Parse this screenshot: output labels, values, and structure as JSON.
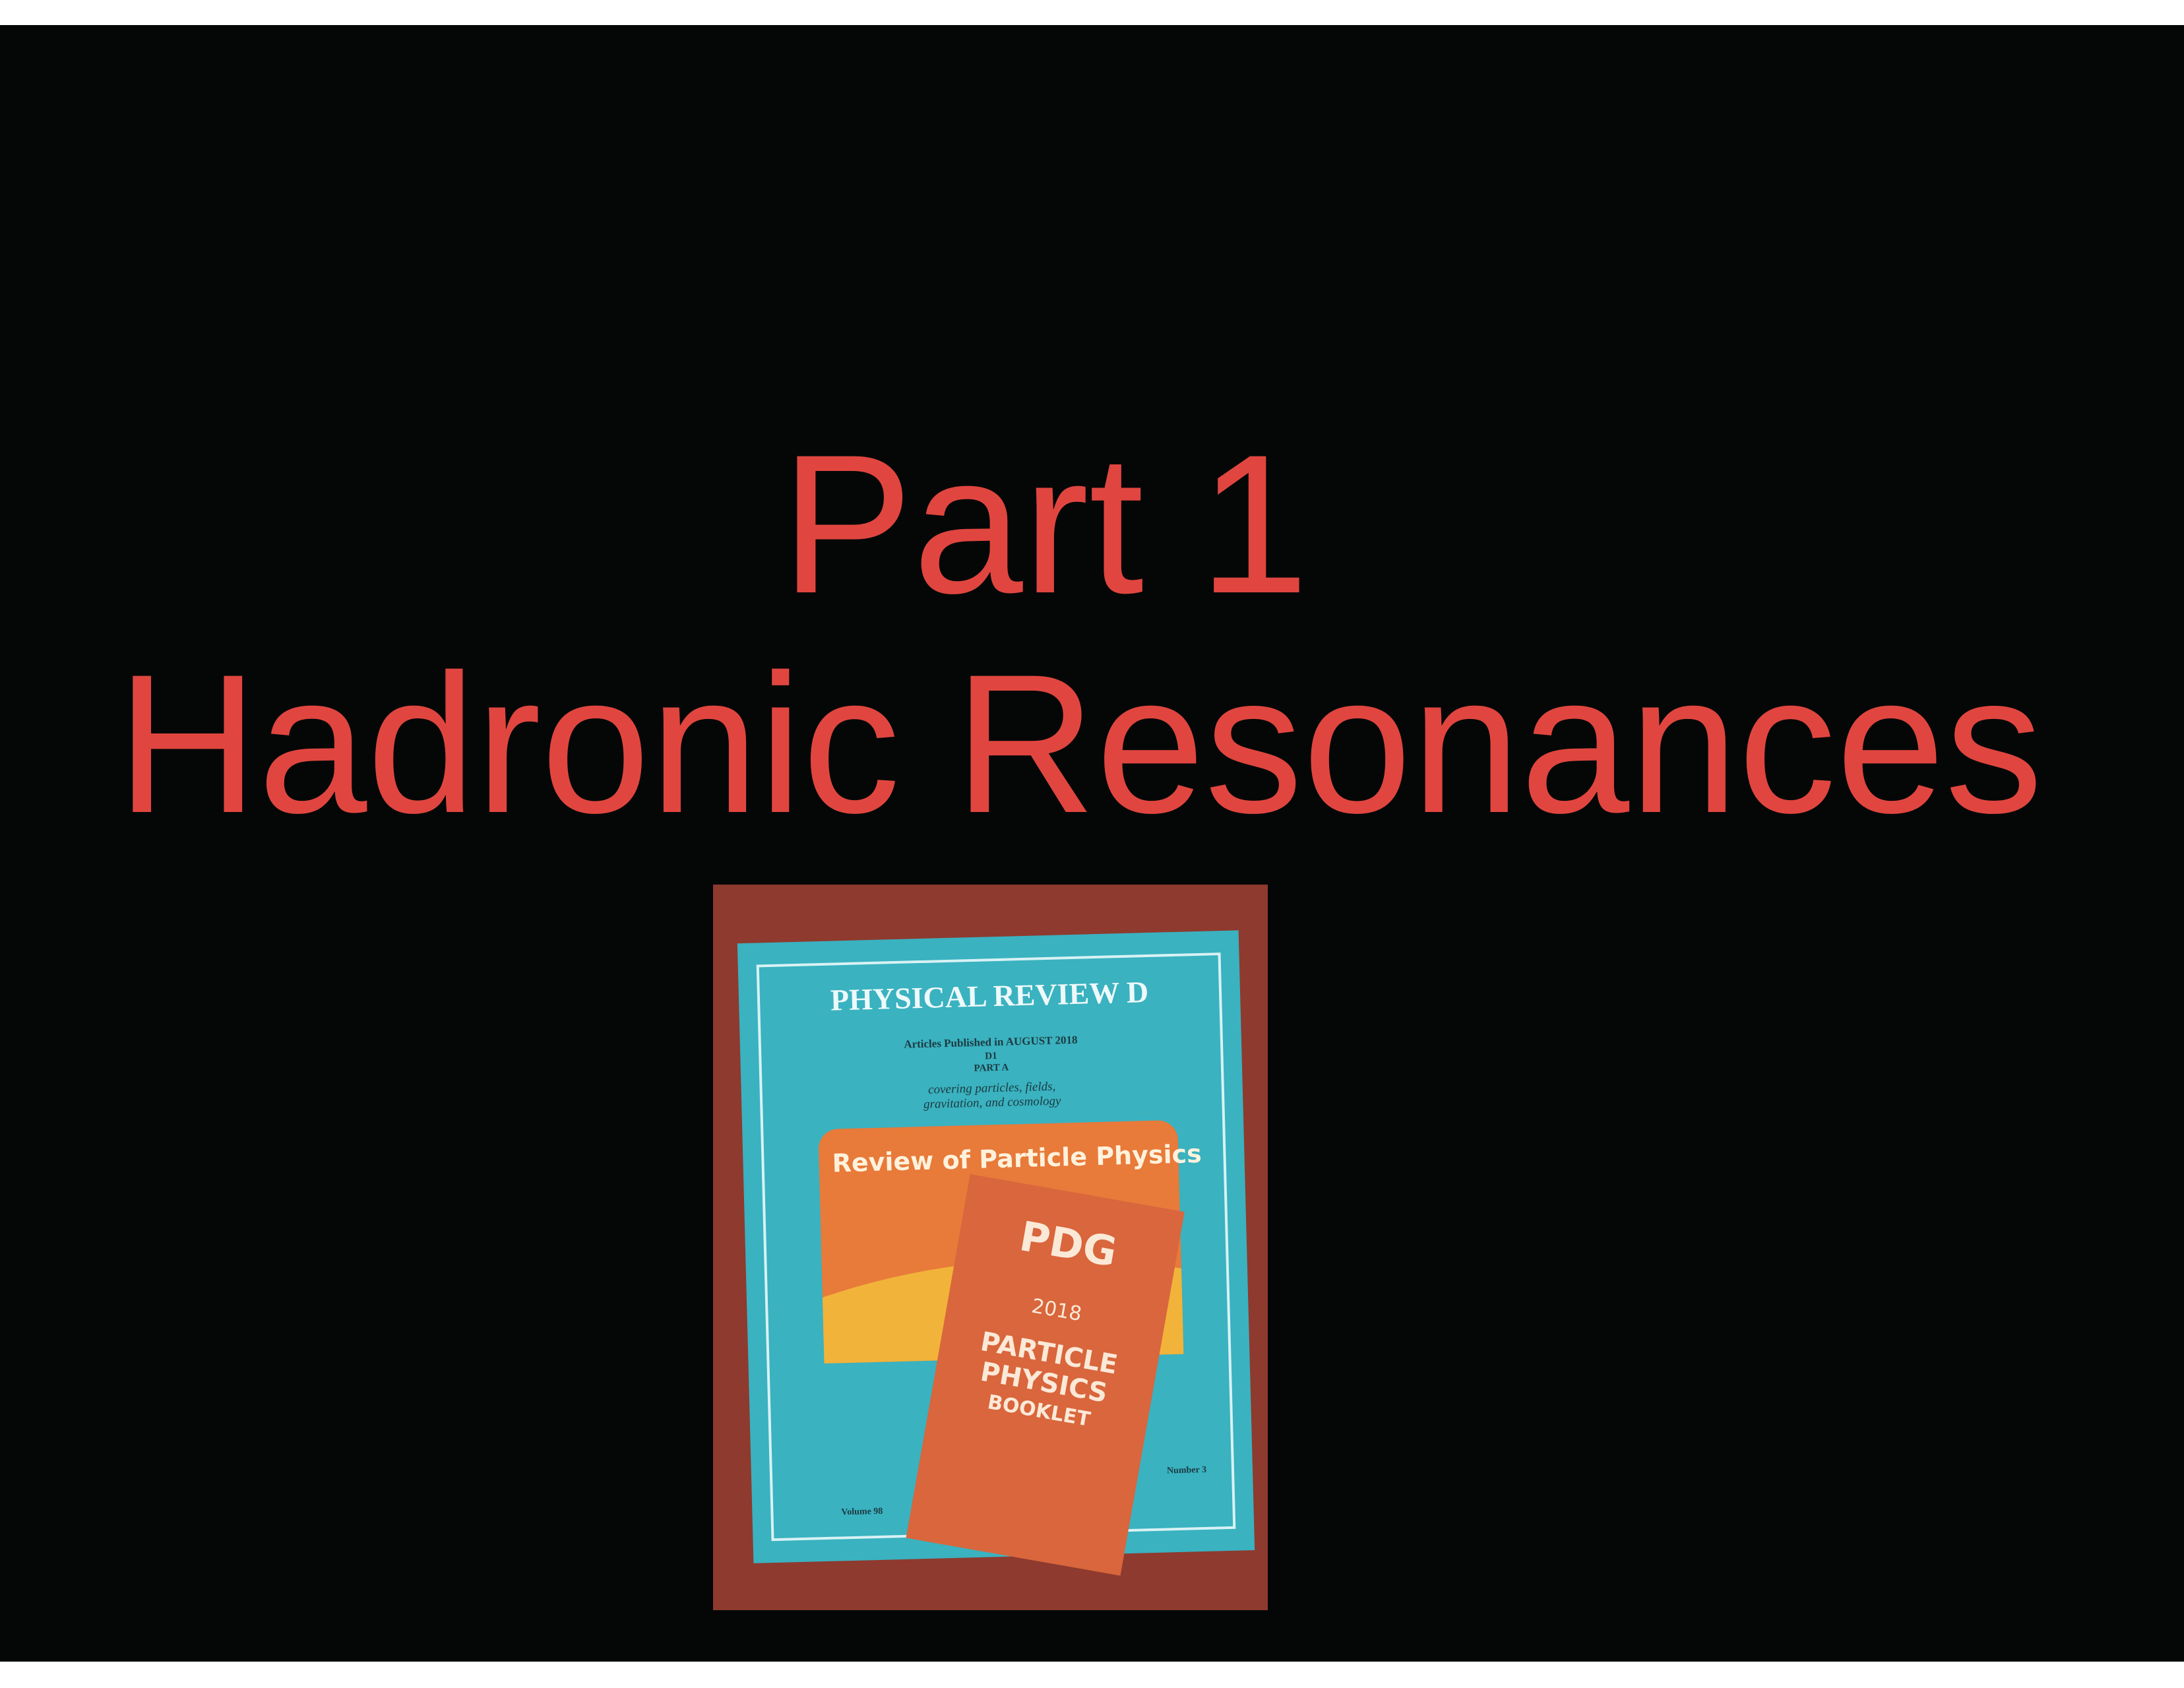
{
  "slide": {
    "title_line1": "Part 1",
    "title_line2": "Hadronic Resonances"
  },
  "photo": {
    "journal": {
      "title": "PHYSICAL REVIEW D",
      "issue": "Articles Published in AUGUST 2018",
      "section": "D1",
      "part": "PART A",
      "scope_line1": "covering particles, fields,",
      "scope_line2": "gravitation, and cosmology",
      "window_title": "Review of Particle Physics",
      "volume": "Volume 98",
      "number": "Number 3"
    },
    "booklet": {
      "logo": "PDG",
      "year": "2018",
      "line1": "PARTICLE",
      "line2": "PHYSICS",
      "line3": "BOOKLET"
    }
  }
}
